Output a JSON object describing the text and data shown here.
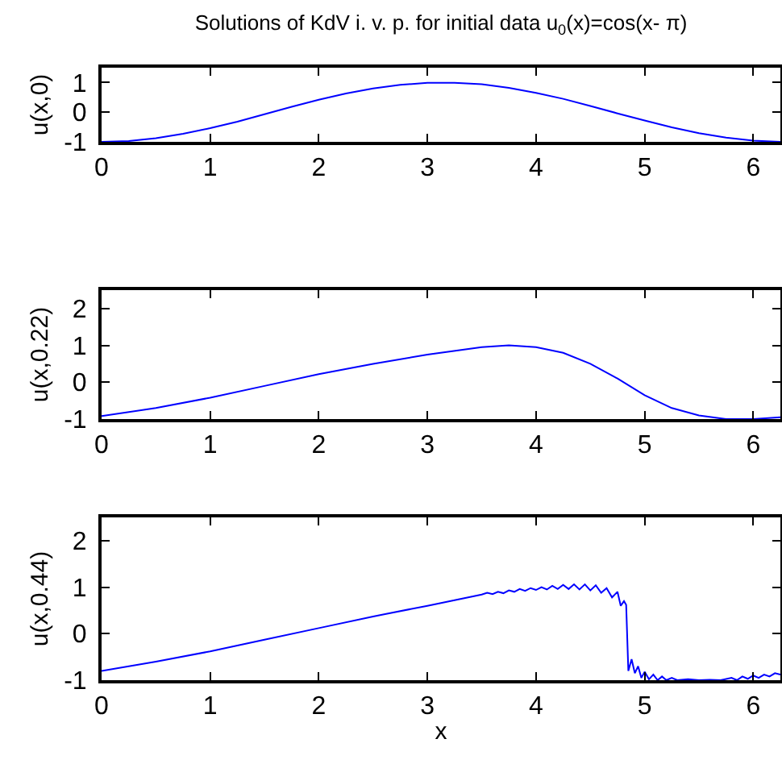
{
  "chart_data": [
    {
      "type": "line",
      "title": "Solutions of KdV i. v. p. for initial data u$_{0}$(x)=cos(x- π)",
      "ylabel": "u(x,0)",
      "xlim": [
        0,
        6.25
      ],
      "xticks": [
        0,
        1,
        2,
        3,
        4,
        5,
        6
      ],
      "ylim": [
        -1,
        1.5
      ],
      "yticks": [
        -1,
        0,
        1
      ],
      "grid": false,
      "marker": "none",
      "line_style": "solid",
      "x": [
        0,
        0.25,
        0.5,
        0.75,
        1,
        1.25,
        1.5,
        1.75,
        2,
        2.25,
        2.5,
        2.75,
        3,
        3.25,
        3.5,
        3.75,
        4,
        4.25,
        4.5,
        4.75,
        5,
        5.25,
        5.5,
        5.75,
        6,
        6.25
      ],
      "series": [
        {
          "color": "#0000ff",
          "values": [
            -1,
            -0.97,
            -0.88,
            -0.73,
            -0.54,
            -0.32,
            -0.07,
            0.18,
            0.42,
            0.63,
            0.8,
            0.92,
            0.99,
            0.99,
            0.94,
            0.82,
            0.65,
            0.45,
            0.21,
            -0.04,
            -0.28,
            -0.51,
            -0.71,
            -0.86,
            -0.96,
            -1
          ]
        }
      ]
    },
    {
      "type": "line",
      "ylabel": "u(x,0.22)",
      "xlim": [
        0,
        6.25
      ],
      "xticks": [
        0,
        1,
        2,
        3,
        4,
        5,
        6
      ],
      "ylim": [
        -1,
        2.5
      ],
      "yticks": [
        -1,
        0,
        1,
        2
      ],
      "grid": false,
      "marker": "none",
      "line_style": "solid",
      "x": [
        0,
        0.5,
        1,
        1.5,
        2,
        2.5,
        3,
        3.5,
        3.75,
        4,
        4.25,
        4.5,
        4.75,
        5,
        5.25,
        5.5,
        5.75,
        6,
        6.25
      ],
      "series": [
        {
          "color": "#0000ff",
          "values": [
            -0.92,
            -0.7,
            -0.42,
            -0.1,
            0.22,
            0.5,
            0.75,
            0.95,
            1.0,
            0.95,
            0.8,
            0.5,
            0.1,
            -0.35,
            -0.7,
            -0.9,
            -1.0,
            -1.0,
            -0.95
          ]
        }
      ]
    },
    {
      "type": "line",
      "ylabel": "u(x,0.44)",
      "xlabel": "x",
      "xlim": [
        0,
        6.25
      ],
      "xticks": [
        0,
        1,
        2,
        3,
        4,
        5,
        6
      ],
      "ylim": [
        -1,
        2.5
      ],
      "yticks": [
        -1,
        0,
        1,
        2
      ],
      "grid": false,
      "marker": "none",
      "line_style": "solid",
      "x": [
        0,
        0.5,
        1,
        1.5,
        2,
        2.5,
        3,
        3.25,
        3.5,
        3.55,
        3.6,
        3.65,
        3.7,
        3.75,
        3.8,
        3.85,
        3.9,
        3.95,
        4.0,
        4.05,
        4.1,
        4.15,
        4.2,
        4.25,
        4.3,
        4.35,
        4.4,
        4.45,
        4.5,
        4.55,
        4.6,
        4.65,
        4.7,
        4.75,
        4.78,
        4.81,
        4.83,
        4.85,
        4.88,
        4.91,
        4.94,
        4.97,
        5.0,
        5.04,
        5.08,
        5.12,
        5.16,
        5.2,
        5.25,
        5.3,
        5.4,
        5.5,
        5.6,
        5.7,
        5.8,
        5.85,
        5.9,
        5.95,
        6.0,
        6.05,
        6.1,
        6.15,
        6.2,
        6.25
      ],
      "series": [
        {
          "color": "#0000ff",
          "values": [
            -0.8,
            -0.6,
            -0.38,
            -0.13,
            0.12,
            0.37,
            0.6,
            0.72,
            0.84,
            0.88,
            0.85,
            0.9,
            0.87,
            0.93,
            0.9,
            0.96,
            0.92,
            0.98,
            0.94,
            1.0,
            0.95,
            1.03,
            0.96,
            1.05,
            0.96,
            1.06,
            0.95,
            1.06,
            0.93,
            1.04,
            0.88,
            0.98,
            0.78,
            0.9,
            0.6,
            0.7,
            0.62,
            -0.8,
            -0.55,
            -0.85,
            -0.7,
            -0.95,
            -0.82,
            -0.98,
            -0.88,
            -1.0,
            -0.92,
            -1.0,
            -0.95,
            -1.0,
            -0.98,
            -1.0,
            -0.99,
            -1.0,
            -0.95,
            -1.0,
            -0.92,
            -0.97,
            -0.9,
            -0.95,
            -0.88,
            -0.92,
            -0.85,
            -0.88
          ]
        }
      ]
    }
  ]
}
